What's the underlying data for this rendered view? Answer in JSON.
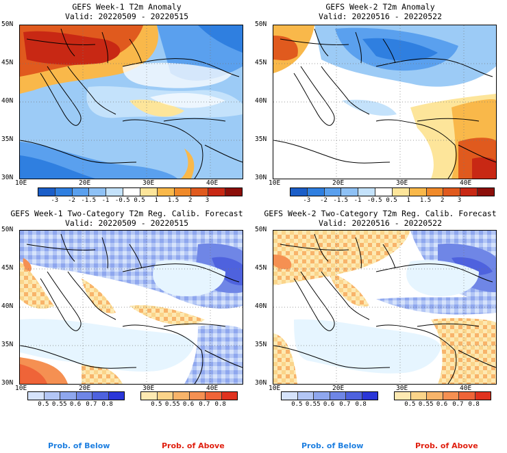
{
  "panels": [
    {
      "title1": "GEFS Week-1 T2m Anomaly",
      "title2": "Valid: 20220509 - 20220515"
    },
    {
      "title1": "GEFS Week-2 T2m Anomaly",
      "title2": "Valid: 20220516 - 20220522"
    },
    {
      "title1": "GEFS Week-1 Two-Category T2m Reg. Calib. Forecast",
      "title2": "Valid: 20220509 - 20220515"
    },
    {
      "title1": "GEFS Week-2 Two-Category T2m Reg. Calib. Forecast",
      "title2": "Valid: 20220516 - 20220522"
    }
  ],
  "lat_labels": [
    "50N",
    "45N",
    "40N",
    "35N",
    "30N"
  ],
  "lon_labels": [
    "10E",
    "20E",
    "30E",
    "40E"
  ],
  "anomaly_colorbar": {
    "labels": [
      "-3",
      "-2",
      "-1.5",
      "-1",
      "-0.5",
      "0.5",
      "1",
      "1.5",
      "2",
      "3"
    ],
    "colors": [
      "#1b5ec8",
      "#2f7fe0",
      "#5aa0ee",
      "#8ec1f5",
      "#c4e2fb",
      "#ffffff",
      "#fde59a",
      "#f9b84a",
      "#f08a2a",
      "#e05a1e",
      "#c82814",
      "#8c0f0a"
    ]
  },
  "prob_below_colorbar": {
    "labels": [
      "0.5",
      "0.55",
      "0.6",
      "0.7",
      "0.8"
    ],
    "colors": [
      "#d6e3fb",
      "#b3c6f5",
      "#8fa7ee",
      "#6f86e6",
      "#4e62de",
      "#2a36d8"
    ]
  },
  "prob_above_colorbar": {
    "labels": [
      "0.5",
      "0.55",
      "0.6",
      "0.7",
      "0.8"
    ],
    "colors": [
      "#fde9b2",
      "#fbd48a",
      "#f8b46a",
      "#f59052",
      "#ef6438",
      "#e0321e"
    ]
  },
  "legend": {
    "below": "Prob. of Below",
    "above": "Prob. of Above"
  },
  "legend_colors": {
    "below": "#1e7fe0",
    "above": "#e02010"
  }
}
